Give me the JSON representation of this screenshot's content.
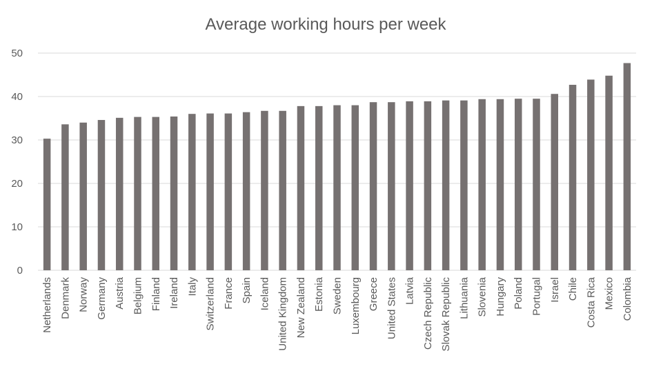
{
  "chart_data": {
    "type": "bar",
    "title": "Average working hours per week",
    "xlabel": "",
    "ylabel": "",
    "ylim": [
      0,
      50
    ],
    "yticks": [
      0,
      10,
      20,
      30,
      40,
      50
    ],
    "grid": true,
    "legend": "none",
    "bar_color": "#767171",
    "categories": [
      "Netherlands",
      "Denmark",
      "Norway",
      "Germany",
      "Austria",
      "Belgium",
      "Finland",
      "Ireland",
      "Italy",
      "Switzerland",
      "France",
      "Spain",
      "Iceland",
      "United Kingdom",
      "New Zealand",
      "Estonia",
      "Sweden",
      "Luxembourg",
      "Greece",
      "United States",
      "Latvia",
      "Czech Republic",
      "Slovak Republic",
      "Lithuania",
      "Slovenia",
      "Hungary",
      "Poland",
      "Portugal",
      "Israel",
      "Chile",
      "Costa Rica",
      "Mexico",
      "Colombia"
    ],
    "values": [
      30.3,
      33.6,
      34.0,
      34.6,
      35.1,
      35.3,
      35.3,
      35.4,
      36.0,
      36.1,
      36.1,
      36.4,
      36.7,
      36.7,
      37.8,
      37.8,
      38.0,
      38.0,
      38.7,
      38.7,
      38.9,
      38.9,
      39.1,
      39.1,
      39.4,
      39.4,
      39.5,
      39.5,
      40.6,
      42.7,
      43.9,
      44.8,
      47.7
    ]
  }
}
